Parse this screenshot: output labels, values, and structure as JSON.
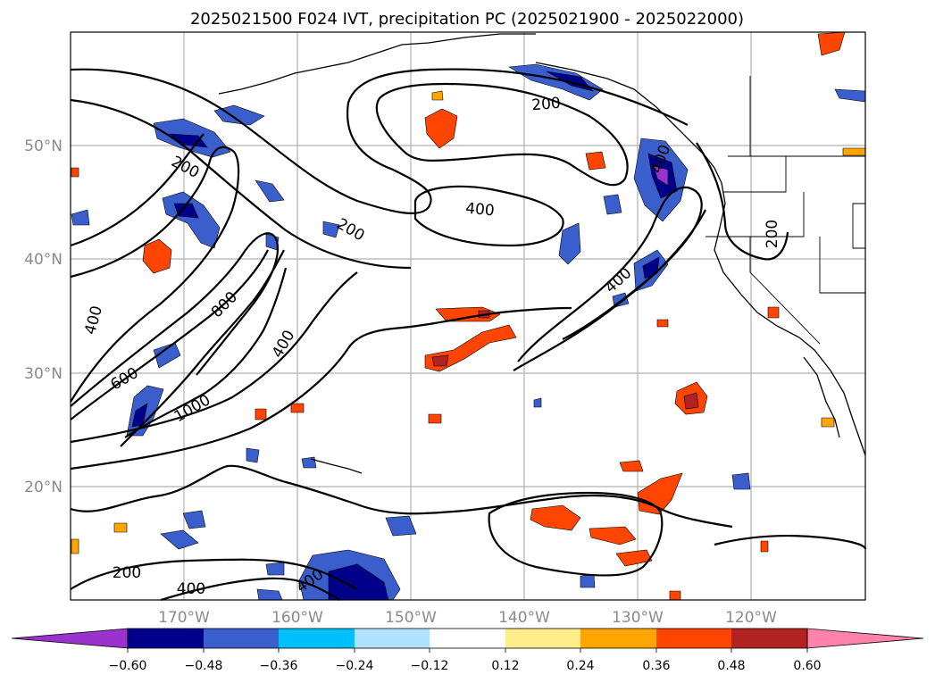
{
  "title": "2025021500 F024 IVT, precipitation PC (2025021900 - 2025022000)",
  "lat_labels": [
    "50°N",
    "40°N",
    "30°N",
    "20°N"
  ],
  "lon_labels": [
    "170°W",
    "160°W",
    "150°W",
    "140°W",
    "130°W",
    "120°W"
  ],
  "contour_labels": [
    "200",
    "200",
    "200",
    "200",
    "200",
    "400",
    "400",
    "400",
    "400",
    "400",
    "400",
    "600",
    "800",
    "1000",
    "200",
    "400"
  ],
  "colorbar": {
    "tick_labels": [
      "−0.60",
      "−0.48",
      "−0.36",
      "−0.24",
      "−0.12",
      "0.12",
      "0.24",
      "0.36",
      "0.48",
      "0.60"
    ],
    "colors": [
      "#9a32cd",
      "#00008b",
      "#3a5fcd",
      "#00bfff",
      "#b0e2ff",
      "#ffffff",
      "#ffec8b",
      "#ffa500",
      "#ff4500",
      "#b22222",
      "#ff82ab"
    ]
  }
}
